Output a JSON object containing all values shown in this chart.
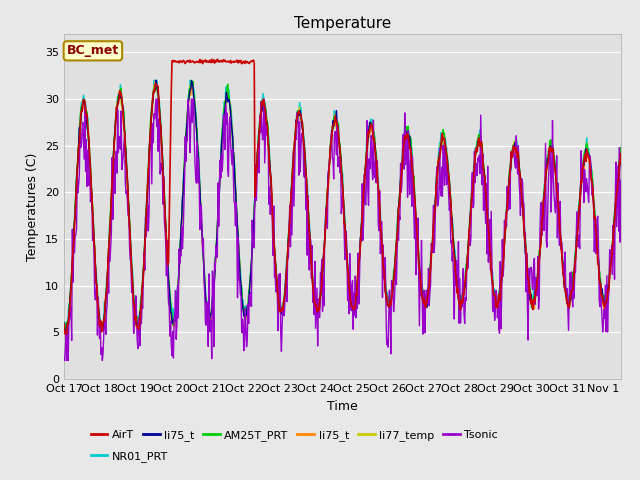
{
  "title": "Temperature",
  "xlabel": "Time",
  "ylabel": "Temperatures (C)",
  "ylim": [
    0,
    37
  ],
  "yticks": [
    0,
    5,
    10,
    15,
    20,
    25,
    30,
    35
  ],
  "fig_bg_color": "#e8e8e8",
  "plot_bg_color": "#e0e0e0",
  "grid_color": "#ffffff",
  "annotation_text": "BC_met",
  "annotation_color": "#8B0000",
  "annotation_bg": "#ffffcc",
  "annotation_border": "#aa8800",
  "series_colors": {
    "AirT": "#cc0000",
    "li75_t_blue": "#000099",
    "AM25T_PRT": "#00cc00",
    "li75_t_orange": "#ff8800",
    "li77_temp": "#cccc00",
    "Tsonic": "#9900cc",
    "NR01_PRT": "#00cccc"
  },
  "legend_entries": [
    {
      "label": "AirT",
      "color": "#cc0000"
    },
    {
      "label": "li75_t",
      "color": "#000099"
    },
    {
      "label": "AM25T_PRT",
      "color": "#00cc00"
    },
    {
      "label": "li75_t",
      "color": "#ff8800"
    },
    {
      "label": "li77_temp",
      "color": "#cccc00"
    },
    {
      "label": "Tsonic",
      "color": "#9900cc"
    },
    {
      "label": "NR01_PRT",
      "color": "#00cccc"
    }
  ],
  "x_tick_labels": [
    "Oct 17",
    "Oct 18",
    "Oct 19",
    "Oct 20",
    "Oct 21",
    "Oct 22",
    "Oct 23",
    "Oct 24",
    "Oct 25",
    "Oct 26",
    "Oct 27",
    "Oct 28",
    "Oct 29",
    "Oct 30",
    "Oct 31",
    "Nov 1"
  ],
  "num_days": 15.5,
  "title_fontsize": 11,
  "tick_fontsize": 8,
  "axis_label_fontsize": 9
}
